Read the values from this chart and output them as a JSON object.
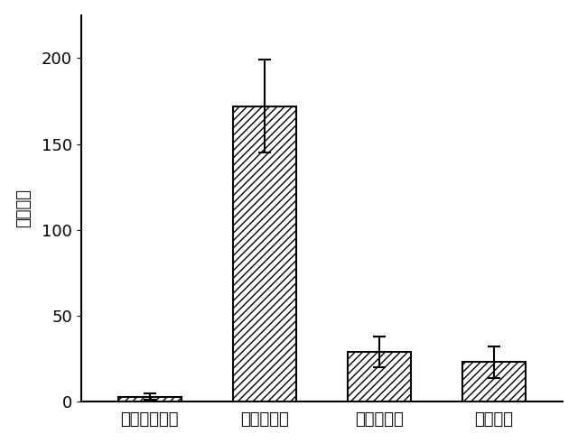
{
  "categories": [
    "コントロール",
    "不完全頭部",
    "プロヘッド",
    "完全頭部"
  ],
  "values": [
    3,
    172,
    29,
    23
  ],
  "errors": [
    2,
    27,
    9,
    9
  ],
  "ylabel": "頭部の数",
  "ylim": [
    0,
    225
  ],
  "yticks": [
    0,
    50,
    100,
    150,
    200
  ],
  "bar_width": 0.55,
  "hatch": "////",
  "bar_facecolor": "#ffffff",
  "bar_edgecolor": "#000000",
  "error_color": "#000000",
  "bg_color": "#ffffff",
  "fig_bg_color": "#ffffff",
  "label_fontsize": 13,
  "tick_fontsize": 13,
  "bar_linewidth": 1.5,
  "spine_linewidth": 1.5
}
